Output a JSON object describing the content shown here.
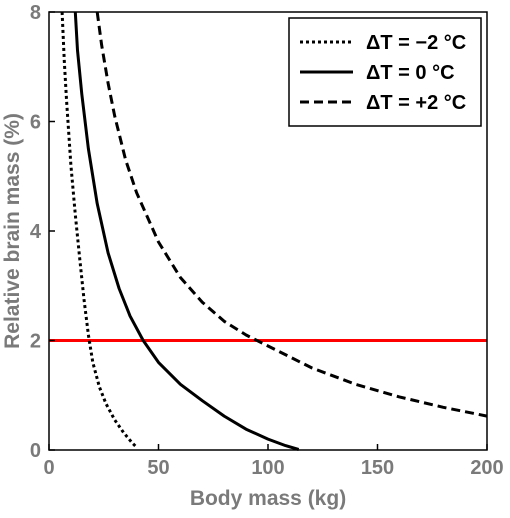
{
  "chart_data": {
    "type": "line",
    "xlabel": "Body mass (kg)",
    "ylabel": "Relative brain mass (%)",
    "xlim": [
      0,
      200
    ],
    "ylim": [
      0,
      8
    ],
    "xticks": [
      0,
      50,
      100,
      150,
      200
    ],
    "yticks": [
      0,
      2,
      4,
      6,
      8
    ],
    "grid": false,
    "legend_position": "top-right",
    "reference_line": {
      "y": 2,
      "color": "#ff0000"
    },
    "series": [
      {
        "name": "ΔT = −2 °C",
        "style": "dotted",
        "color": "#000000",
        "points": [
          [
            6,
            8
          ],
          [
            7,
            7.1
          ],
          [
            8,
            6.4
          ],
          [
            9,
            5.8
          ],
          [
            10,
            5.2
          ],
          [
            12,
            4.3
          ],
          [
            14,
            3.5
          ],
          [
            16,
            2.75
          ],
          [
            18,
            2.1
          ],
          [
            20,
            1.6
          ],
          [
            23,
            1.15
          ],
          [
            26,
            0.85
          ],
          [
            30,
            0.55
          ],
          [
            34,
            0.32
          ],
          [
            38,
            0.13
          ],
          [
            40,
            0.05
          ]
        ]
      },
      {
        "name": "ΔT = 0 °C",
        "style": "solid",
        "color": "#000000",
        "points": [
          [
            12,
            8
          ],
          [
            13,
            7.3
          ],
          [
            15,
            6.5
          ],
          [
            18,
            5.5
          ],
          [
            22,
            4.5
          ],
          [
            27,
            3.6
          ],
          [
            32,
            2.95
          ],
          [
            37,
            2.45
          ],
          [
            43,
            2.0
          ],
          [
            50,
            1.6
          ],
          [
            60,
            1.2
          ],
          [
            70,
            0.9
          ],
          [
            80,
            0.62
          ],
          [
            90,
            0.38
          ],
          [
            100,
            0.2
          ],
          [
            108,
            0.08
          ],
          [
            114,
            0.01
          ]
        ]
      },
      {
        "name": "ΔT = +2 °C",
        "style": "dashed",
        "color": "#000000",
        "points": [
          [
            22,
            8
          ],
          [
            24,
            7.4
          ],
          [
            27,
            6.7
          ],
          [
            30,
            6.1
          ],
          [
            35,
            5.3
          ],
          [
            40,
            4.7
          ],
          [
            50,
            3.8
          ],
          [
            60,
            3.15
          ],
          [
            70,
            2.7
          ],
          [
            80,
            2.35
          ],
          [
            90,
            2.1
          ],
          [
            100,
            1.9
          ],
          [
            110,
            1.7
          ],
          [
            120,
            1.5
          ],
          [
            140,
            1.2
          ],
          [
            160,
            0.97
          ],
          [
            180,
            0.78
          ],
          [
            200,
            0.62
          ]
        ]
      }
    ]
  }
}
